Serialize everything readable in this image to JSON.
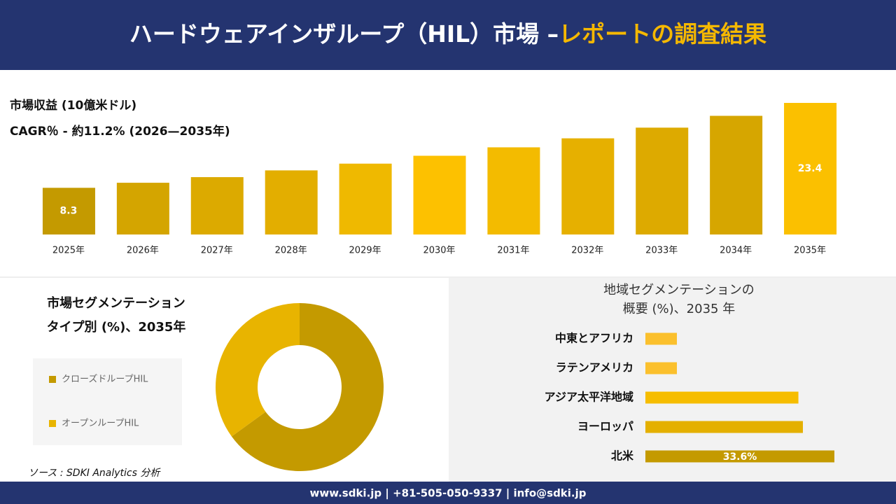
{
  "header": {
    "title": "ハードウェアインザループ（HIL）市場 –",
    "highlight": "レポートの調査結果"
  },
  "chart_data": [
    {
      "type": "bar",
      "title": "市場収益 (10億米ドル)",
      "subtitle": "CAGR％ - 約11.2% (2026—2035年)",
      "categories": [
        "2025年",
        "2026年",
        "2027年",
        "2028年",
        "2029年",
        "2030年",
        "2031年",
        "2032年",
        "2033年",
        "2034年",
        "2035年"
      ],
      "values": [
        8.3,
        9.2,
        10.2,
        11.4,
        12.6,
        14.0,
        15.5,
        17.1,
        19.0,
        21.1,
        23.4
      ],
      "value_labels": [
        "8.3",
        null,
        null,
        null,
        null,
        null,
        null,
        null,
        null,
        null,
        "23.4"
      ],
      "colors": [
        "#c49a00",
        "#d4a500",
        "#dcaa00",
        "#e3ae00",
        "#efb900",
        "#fdc100",
        "#f3bb00",
        "#e6b000",
        "#ddaa00",
        "#d6a600",
        "#fbc000"
      ]
    },
    {
      "type": "donut",
      "title": [
        "市場セグメンテーション",
        "タイプ別 (%)、2035年"
      ],
      "categories": [
        "クローズドループHIL",
        "オープンループHIL"
      ],
      "values": [
        65,
        35
      ],
      "colors": [
        "#c49a00",
        "#e8b400"
      ]
    },
    {
      "type": "hbar",
      "title": [
        "地域セグメンテーションの",
        "概要 (%)、2035 年"
      ],
      "categories": [
        "中東とアフリカ",
        "ラテンアメリカ",
        "アジア太平洋地域",
        "ヨーロッパ",
        "北米"
      ],
      "values": [
        5.6,
        5.6,
        27.2,
        28.0,
        33.6
      ],
      "value_labels": [
        null,
        null,
        null,
        null,
        "33.6%"
      ],
      "colors": [
        "#fbc02d",
        "#fbc02d",
        "#f6bd00",
        "#e4b000",
        "#c49a00"
      ]
    }
  ],
  "source": "ソース : SDKI Analytics 分析",
  "footer": "www.sdki.jp | +81-505-050-9337 | info@sdki.jp"
}
